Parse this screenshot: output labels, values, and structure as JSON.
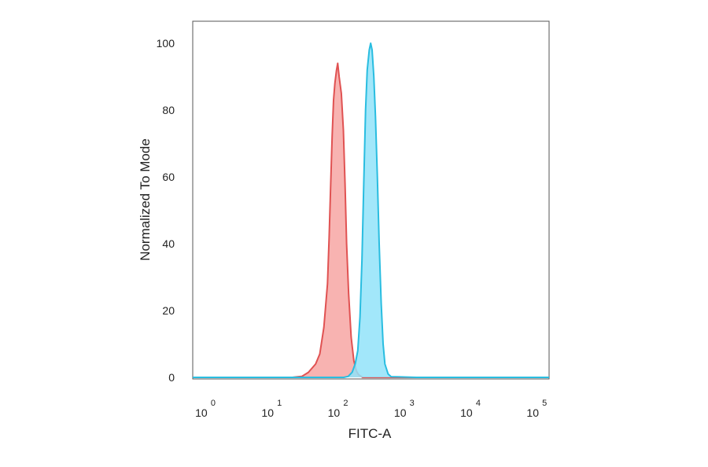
{
  "chart_data": {
    "type": "area",
    "xlabel": "FITC-A",
    "ylabel": "Normalized To Mode",
    "x_scale": "log",
    "xlim": [
      0.63,
      150000
    ],
    "ylim": [
      0,
      100
    ],
    "y_ticks": [
      0,
      20,
      40,
      60,
      80,
      100
    ],
    "x_ticks": [
      {
        "value": 1,
        "base": "10",
        "exp": "0"
      },
      {
        "value": 10,
        "base": "10",
        "exp": "1"
      },
      {
        "value": 100,
        "base": "10",
        "exp": "2"
      },
      {
        "value": 1000,
        "base": "10",
        "exp": "3"
      },
      {
        "value": 10000,
        "base": "10",
        "exp": "4"
      },
      {
        "value": 100000,
        "base": "10",
        "exp": "5"
      }
    ],
    "series": [
      {
        "color": "#e05252",
        "fill": "#f7a6a3",
        "points": [
          [
            0.63,
            0
          ],
          [
            20,
            0
          ],
          [
            28,
            0.3
          ],
          [
            35,
            1.5
          ],
          [
            45,
            4
          ],
          [
            52,
            7
          ],
          [
            60,
            15
          ],
          [
            68,
            28
          ],
          [
            72,
            42
          ],
          [
            76,
            58
          ],
          [
            80,
            72
          ],
          [
            84,
            83
          ],
          [
            88,
            88
          ],
          [
            93,
            92
          ],
          [
            97,
            94
          ],
          [
            102,
            90
          ],
          [
            110,
            85
          ],
          [
            118,
            74
          ],
          [
            125,
            58
          ],
          [
            132,
            40
          ],
          [
            142,
            25
          ],
          [
            155,
            12
          ],
          [
            170,
            5
          ],
          [
            185,
            2
          ],
          [
            200,
            0.8
          ],
          [
            230,
            0
          ],
          [
            150000,
            0
          ]
        ]
      },
      {
        "color": "#29bde0",
        "fill": "#92e3f9",
        "points": [
          [
            0.63,
            0
          ],
          [
            120,
            0
          ],
          [
            140,
            0.3
          ],
          [
            160,
            1.5
          ],
          [
            178,
            4
          ],
          [
            195,
            8
          ],
          [
            210,
            18
          ],
          [
            225,
            35
          ],
          [
            240,
            58
          ],
          [
            255,
            80
          ],
          [
            270,
            92
          ],
          [
            290,
            98
          ],
          [
            305,
            100
          ],
          [
            320,
            98
          ],
          [
            340,
            90
          ],
          [
            360,
            78
          ],
          [
            385,
            60
          ],
          [
            410,
            40
          ],
          [
            440,
            22
          ],
          [
            470,
            10
          ],
          [
            500,
            4
          ],
          [
            560,
            1
          ],
          [
            620,
            0.2
          ],
          [
            1500,
            0
          ],
          [
            150000,
            0
          ]
        ]
      }
    ]
  }
}
